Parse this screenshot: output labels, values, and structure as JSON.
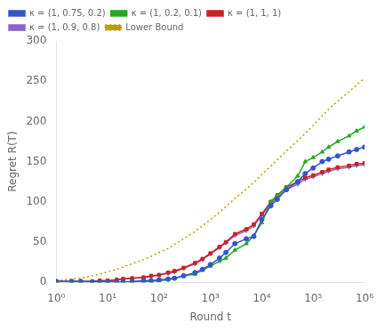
{
  "chart_data": {
    "type": "line",
    "xlabel": "Round t",
    "ylabel": "Regret R(T)",
    "log": "x",
    "grid": false,
    "legend": "upper left",
    "xlim": [
      1,
      1000000
    ],
    "xticks": [
      {
        "value": 1,
        "label": "10⁰"
      },
      {
        "value": 10,
        "label": "10¹"
      },
      {
        "value": 100,
        "label": "10²"
      },
      {
        "value": 1000,
        "label": "10³"
      },
      {
        "value": 10000,
        "label": "10⁴"
      },
      {
        "value": 100000,
        "label": "10⁵"
      },
      {
        "value": 1000000,
        "label": "10⁶"
      }
    ],
    "ylim": [
      0,
      300
    ],
    "yticks": [
      0,
      50,
      100,
      150,
      200,
      250,
      300
    ],
    "x": [
      1,
      2,
      3,
      5,
      7,
      10,
      15,
      20,
      30,
      50,
      70,
      100,
      150,
      200,
      300,
      500,
      700,
      1000,
      1500,
      2000,
      3000,
      5000,
      7000,
      10000,
      15000,
      20000,
      30000,
      50000,
      70000,
      100000,
      150000,
      200000,
      300000,
      500000,
      700000,
      1000000
    ],
    "series": [
      {
        "name": "κ = (1, 0.75, 0.2)",
        "color": "#3355cc",
        "marker": "circle",
        "line_style": "solid",
        "values": [
          1,
          1,
          1,
          0.5,
          0.5,
          0.5,
          0.5,
          0.5,
          1,
          2,
          2,
          3,
          4,
          5,
          8,
          12,
          16,
          22,
          30,
          37,
          48,
          54,
          57,
          78,
          95,
          103,
          115,
          125,
          135,
          142,
          150,
          153,
          157,
          162,
          165,
          168
        ]
      },
      {
        "name": "κ = (1, 0.2, 0.1)",
        "color": "#22aa22",
        "marker": "triangle",
        "line_style": "solid",
        "values": [
          0.5,
          0.5,
          0.5,
          0.5,
          0.5,
          0.5,
          0.5,
          0.5,
          0.5,
          1,
          1,
          2,
          3,
          5,
          8,
          10,
          15,
          20,
          26,
          30,
          40,
          48,
          58,
          74,
          100,
          108,
          118,
          132,
          150,
          155,
          162,
          168,
          175,
          182,
          188,
          193
        ]
      },
      {
        "name": "κ = (1, 1, 1)",
        "color": "#cc2222",
        "marker": "square",
        "line_style": "solid",
        "values": [
          1,
          1,
          1,
          1,
          2,
          2,
          3,
          4,
          5,
          6,
          8,
          9,
          12,
          14,
          18,
          24,
          29,
          36,
          44,
          50,
          60,
          66,
          72,
          85,
          100,
          108,
          118,
          125,
          130,
          133,
          137,
          140,
          143,
          145,
          147,
          148
        ]
      },
      {
        "name": "κ = (1, 0.9, 0.8)",
        "color": "#8866cc",
        "marker": "plus",
        "line_style": "solid",
        "values": [
          1,
          1,
          1,
          1,
          2,
          2,
          3,
          4,
          5,
          6,
          7,
          9,
          11,
          13,
          17,
          23,
          28,
          35,
          43,
          49,
          58,
          64,
          70,
          83,
          98,
          106,
          115,
          122,
          128,
          131,
          135,
          138,
          141,
          143,
          145,
          146
        ]
      },
      {
        "name": "Lower Bound",
        "color": "#b8a000",
        "marker": "none",
        "line_style": "dotted",
        "values": [
          2,
          4,
          5,
          8,
          10,
          13,
          16,
          19,
          23,
          28,
          32,
          37,
          42,
          47,
          54,
          63,
          70,
          78,
          87,
          94,
          104,
          116,
          124,
          134,
          144,
          152,
          163,
          176,
          185,
          195,
          207,
          215,
          225,
          237,
          245,
          254
        ]
      }
    ]
  }
}
